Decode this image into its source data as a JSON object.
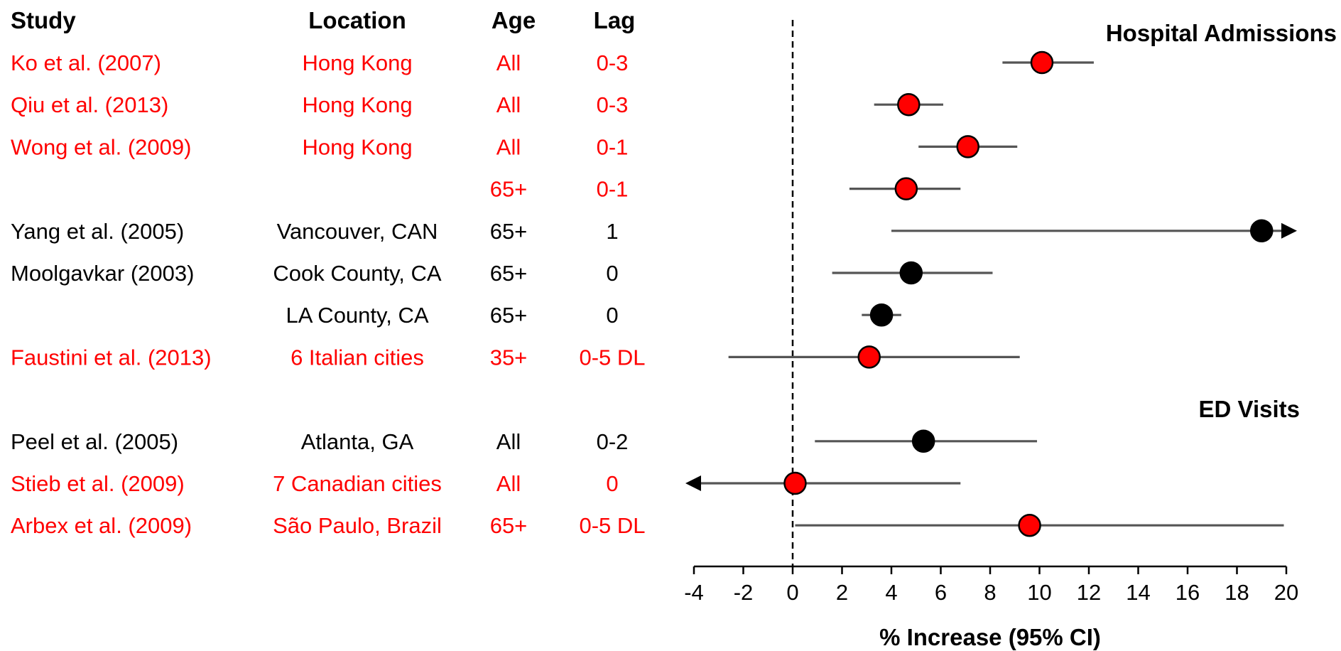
{
  "headers": {
    "study": "Study",
    "location": "Location",
    "age": "Age",
    "lag": "Lag"
  },
  "colors": {
    "highlight": "#ff0000",
    "normal": "#000000",
    "ci_line": "#555555"
  },
  "chart_data": {
    "type": "forest",
    "xlabel": "% Increase (95% CI)",
    "xlim": [
      -4,
      20
    ],
    "xticks": [
      "-4",
      "-2",
      "0",
      "2",
      "4",
      "6",
      "8",
      "10",
      "12",
      "14",
      "16",
      "18",
      "20"
    ],
    "reference_line": 0,
    "panels": [
      {
        "label": "Hospital Admissions",
        "first_row": 0
      },
      {
        "label": "ED Visits",
        "first_row": 8
      }
    ],
    "rows": [
      {
        "study": "Ko et al. (2007)",
        "location": "Hong Kong",
        "age": "All",
        "lag": "0-3",
        "est": 10.1,
        "lo": 8.5,
        "hi": 12.2,
        "highlight": true
      },
      {
        "study": "Qiu et al. (2013)",
        "location": "Hong Kong",
        "age": "All",
        "lag": "0-3",
        "est": 4.7,
        "lo": 3.3,
        "hi": 6.1,
        "highlight": true
      },
      {
        "study": "Wong et al. (2009)",
        "location": "Hong Kong",
        "age": "All",
        "lag": "0-1",
        "est": 7.1,
        "lo": 5.1,
        "hi": 9.1,
        "highlight": true
      },
      {
        "study": "",
        "location": "",
        "age": "65+",
        "lag": "0-1",
        "est": 4.6,
        "lo": 2.3,
        "hi": 6.8,
        "highlight": true
      },
      {
        "study": "Yang et al. (2005)",
        "location": "Vancouver, CAN",
        "age": "65+",
        "lag": "1",
        "est": 19.0,
        "lo": 4.0,
        "hi": 20,
        "arrow_right": true,
        "highlight": false
      },
      {
        "study": "Moolgavkar (2003)",
        "location": "Cook County, CA",
        "age": "65+",
        "lag": "0",
        "est": 4.8,
        "lo": 1.6,
        "hi": 8.1,
        "highlight": false
      },
      {
        "study": "",
        "location": "LA County, CA",
        "age": "65+",
        "lag": "0",
        "est": 3.6,
        "lo": 2.8,
        "hi": 4.4,
        "highlight": false
      },
      {
        "study": "Faustini et al. (2013)",
        "location": "6 Italian cities",
        "age": "35+",
        "lag": "0-5 DL",
        "est": 3.1,
        "lo": -2.6,
        "hi": 9.2,
        "highlight": true
      },
      {
        "study": "Peel et al. (2005)",
        "location": "Atlanta, GA",
        "age": "All",
        "lag": "0-2",
        "est": 5.3,
        "lo": 0.9,
        "hi": 9.9,
        "highlight": false
      },
      {
        "study": "Stieb et al. (2009)",
        "location": "7 Canadian cities",
        "age": "All",
        "lag": "0",
        "est": 0.1,
        "lo": -4,
        "hi": 6.8,
        "arrow_left": true,
        "highlight": true
      },
      {
        "study": "Arbex et al. (2009)",
        "location": "São Paulo, Brazil",
        "age": "65+",
        "lag": "0-5 DL",
        "est": 9.6,
        "lo": 0.1,
        "hi": 19.9,
        "highlight": true
      }
    ]
  }
}
